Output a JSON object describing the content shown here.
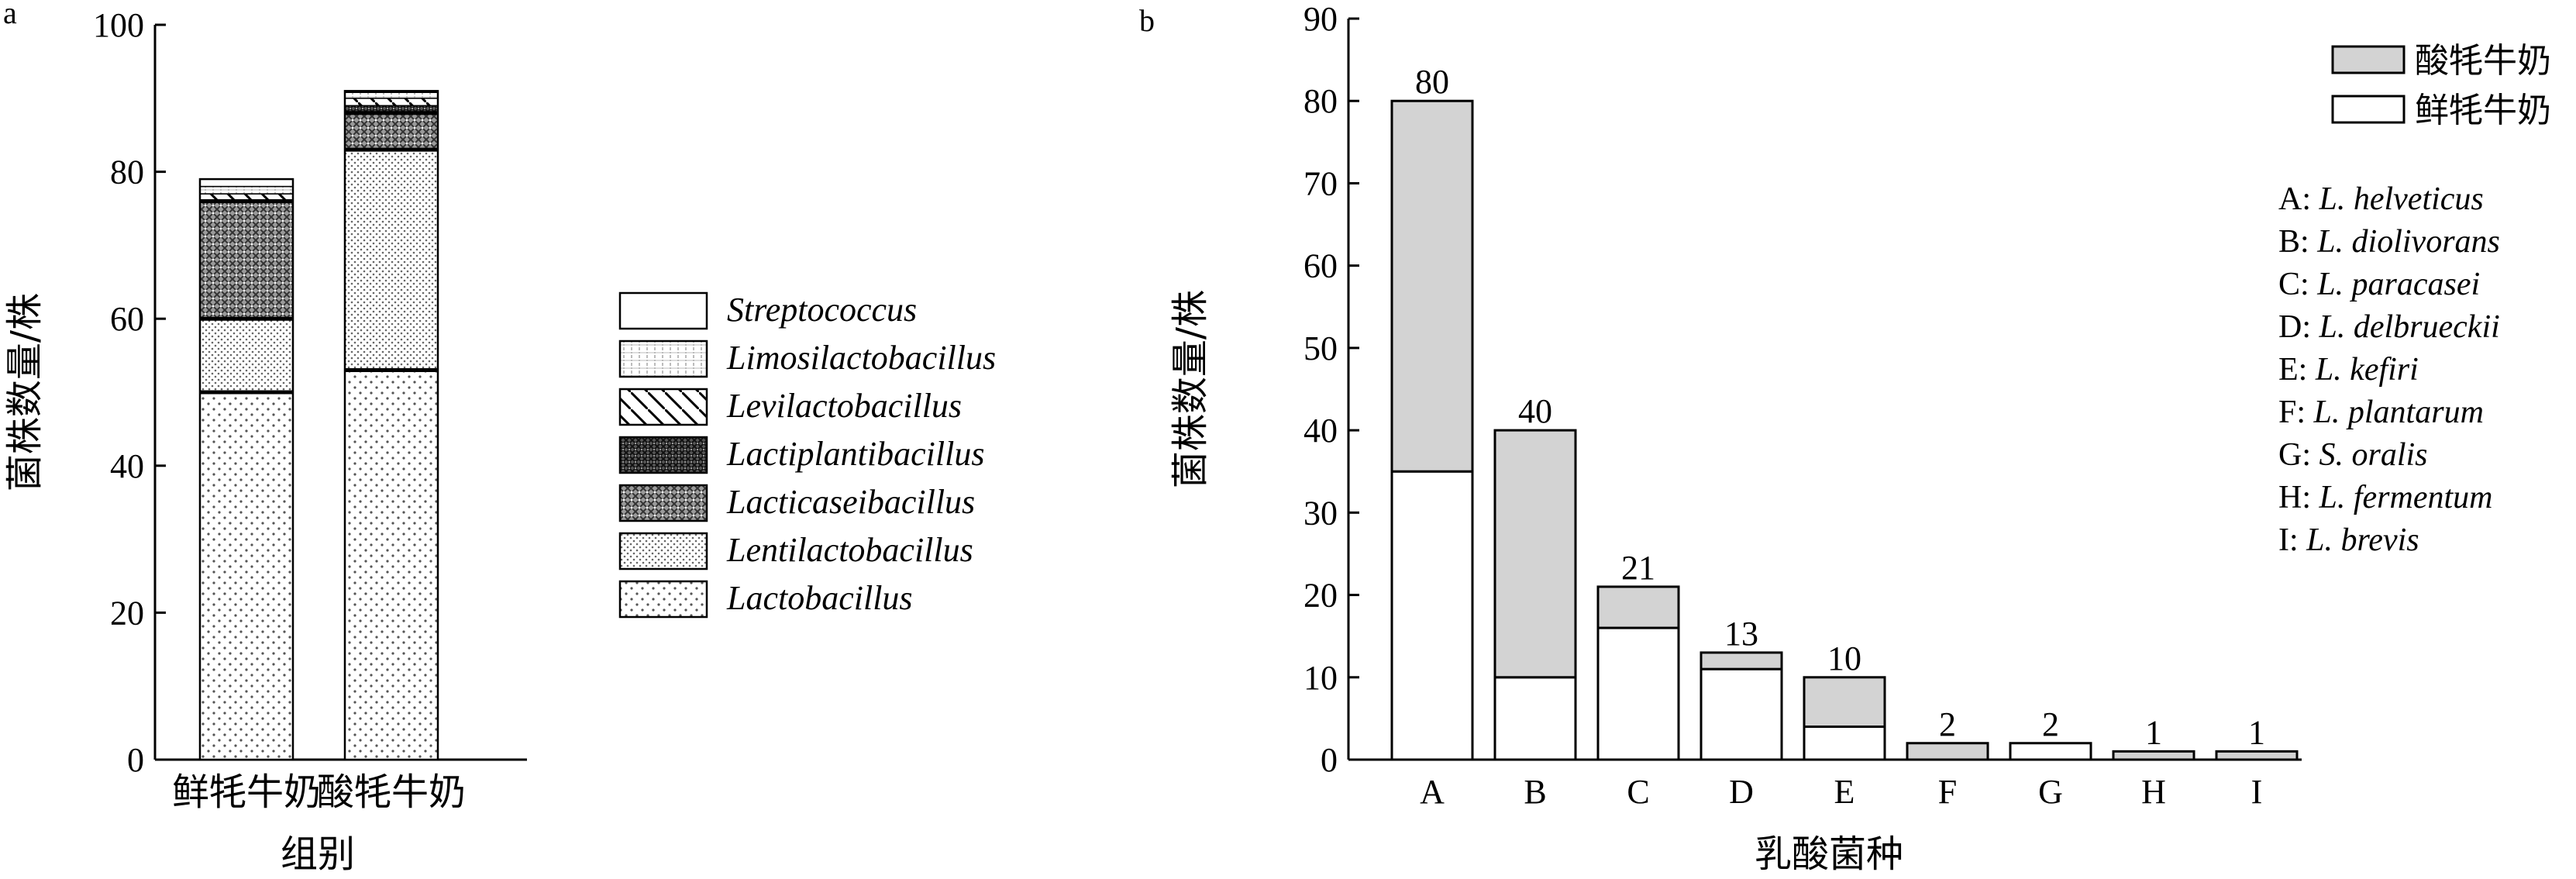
{
  "chart_data": [
    {
      "panel": "a",
      "type": "bar",
      "stacked": true,
      "ylabel": "菌株数量/株",
      "xlabel": "组别",
      "categories": [
        "鲜牦牛奶",
        "酸牦牛奶"
      ],
      "ylim": [
        0,
        100
      ],
      "yticks": [
        0,
        20,
        40,
        60,
        80,
        100
      ],
      "series": [
        {
          "name": "Lactobacillus",
          "pattern": "dots",
          "values": [
            50,
            53
          ]
        },
        {
          "name": "Lentilactobacillus",
          "pattern": "fine-dots",
          "values": [
            10,
            30
          ]
        },
        {
          "name": "Lacticaseibacillus",
          "pattern": "crosshatch",
          "values": [
            16,
            5
          ]
        },
        {
          "name": "Lactiplantibacillus",
          "pattern": "dark-crosshatch",
          "values": [
            0,
            1
          ]
        },
        {
          "name": "Levilactobacillus",
          "pattern": "diagonal",
          "values": [
            1,
            1
          ]
        },
        {
          "name": "Limosilactobacillus",
          "pattern": "grid",
          "values": [
            1,
            0.8
          ]
        },
        {
          "name": "Streptococcus",
          "pattern": "white",
          "values": [
            1,
            0.2
          ]
        }
      ],
      "legend_order": [
        "Streptococcus",
        "Limosilactobacillus",
        "Levilactobacillus",
        "Lactiplantibacillus",
        "Lacticaseibacillus",
        "Lentilactobacillus",
        "Lactobacillus"
      ]
    },
    {
      "panel": "b",
      "type": "bar",
      "stacked": true,
      "ylabel": "菌株数量/株",
      "xlabel": "乳酸菌种",
      "categories": [
        "A",
        "B",
        "C",
        "D",
        "E",
        "F",
        "G",
        "H",
        "I"
      ],
      "ylim": [
        0,
        90
      ],
      "yticks": [
        0,
        10,
        20,
        30,
        40,
        50,
        60,
        70,
        80,
        90
      ],
      "series": [
        {
          "name": "鲜牦牛奶",
          "color": "#ffffff",
          "values": [
            35,
            10,
            16,
            11,
            4,
            0,
            2,
            0,
            0
          ]
        },
        {
          "name": "酸牦牛奶",
          "color": "#d3d3d3",
          "values": [
            45,
            30,
            5,
            2,
            6,
            2,
            0,
            1,
            1
          ]
        }
      ],
      "totals": [
        80,
        40,
        21,
        13,
        10,
        2,
        2,
        1,
        1
      ],
      "legend_order": [
        "酸牦牛奶",
        "鲜牦牛奶"
      ],
      "species_key": [
        {
          "code": "A:",
          "name": "L. helveticus"
        },
        {
          "code": "B:",
          "name": "L. diolivorans"
        },
        {
          "code": "C:",
          "name": "L. paracasei"
        },
        {
          "code": "D:",
          "name": "L. delbrueckii"
        },
        {
          "code": "E:",
          "name": "L. kefiri"
        },
        {
          "code": "F:",
          "name": "L. plantarum"
        },
        {
          "code": "G:",
          "name": "S. oralis"
        },
        {
          "code": "H:",
          "name": "L. fermentum"
        },
        {
          "code": "I:",
          "name": "L. brevis"
        }
      ]
    }
  ],
  "panel_labels": [
    "a",
    "b"
  ]
}
